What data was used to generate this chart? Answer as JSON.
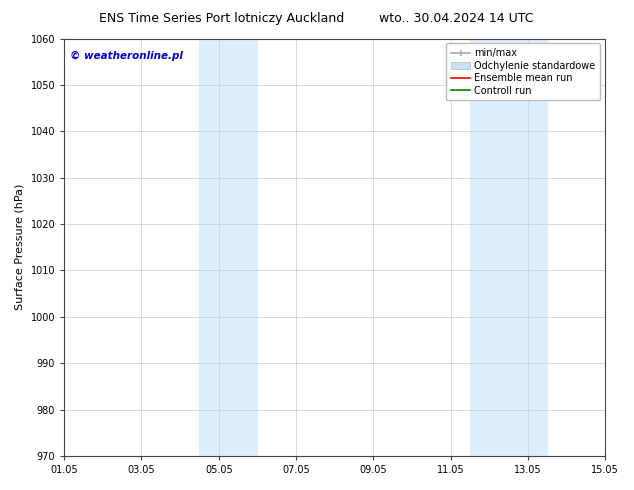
{
  "title": "ENS Time Series Port lotniczy Auckland      wto.. 30.04.2024 14 UTC",
  "title_left": "ENS Time Series Port lotniczy Auckland",
  "title_right": "wto.. 30.04.2024 14 UTC",
  "ylabel": "Surface Pressure (hPa)",
  "ylim": [
    970,
    1060
  ],
  "yticks": [
    970,
    980,
    990,
    1000,
    1010,
    1020,
    1030,
    1040,
    1050,
    1060
  ],
  "xtick_labels": [
    "01.05",
    "03.05",
    "05.05",
    "07.05",
    "09.05",
    "11.05",
    "13.05",
    "15.05"
  ],
  "xtick_positions": [
    0,
    2,
    4,
    6,
    8,
    10,
    12,
    14
  ],
  "xlim": [
    0,
    14
  ],
  "shaded_regions": [
    {
      "x_start": 3.5,
      "x_end": 5.0,
      "color": "#ddeeff"
    },
    {
      "x_start": 10.5,
      "x_end": 12.5,
      "color": "#ddeeff"
    }
  ],
  "watermark": "© weatheronline.pl",
  "watermark_color": "#0000cc",
  "legend_labels": [
    "min/max",
    "Odchylenie standardowe",
    "Ensemble mean run",
    "Controll run"
  ],
  "legend_handle_colors": [
    "#aaaaaa",
    "#cce0f0",
    "red",
    "green"
  ],
  "background_color": "#ffffff",
  "grid_color": "#cccccc",
  "title_fontsize": 9,
  "tick_fontsize": 7,
  "ylabel_fontsize": 8,
  "watermark_fontsize": 7.5,
  "legend_fontsize": 7
}
